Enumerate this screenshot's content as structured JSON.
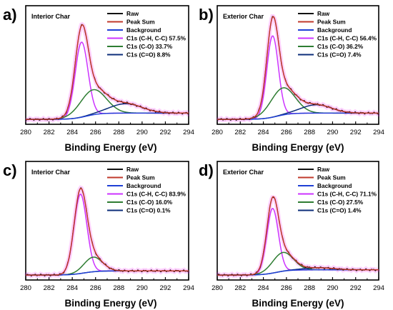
{
  "figure": {
    "x_ticks": [
      "280",
      "282",
      "284",
      "286",
      "288",
      "290",
      "292",
      "294"
    ],
    "x_axis_label": "Binding Energy  (eV)"
  },
  "colors": {
    "raw": "#111111",
    "peak_sum": "#c0392b",
    "background": "#1f3fd6",
    "c1_chc": "#cc33ff",
    "c1_co": "#2e7d32",
    "c1_c_eq_o": "#0c2e7a",
    "raw_halo": "#ff00ff"
  },
  "chart_data": [
    {
      "panel": "a)",
      "type": "line",
      "title": "Interior Char",
      "xlabel": "Binding Energy  (eV)",
      "xlim": [
        280,
        294
      ],
      "ylabel": "",
      "legend": "top-right",
      "grid": false,
      "legend_entries": [
        "Raw",
        "Peak Sum",
        "Background",
        "C1s (C-H, C-C) 57.5%",
        "C1s (C-O) 33.7%",
        "C1s (C=O) 8.8%"
      ],
      "background_line": {
        "start": 0.02,
        "end": 0.08,
        "step_center": 285.2
      },
      "components": [
        {
          "label": "C1s (C-H, C-C) 57.5%",
          "center": 284.8,
          "width": 0.55,
          "height": 0.72
        },
        {
          "label": "C1s (C-O) 33.7%",
          "center": 285.8,
          "width": 1.1,
          "height": 0.24
        },
        {
          "label": "C1s (C=O) 8.8%",
          "center": 288.6,
          "width": 1.4,
          "height": 0.09
        }
      ]
    },
    {
      "panel": "b)",
      "type": "line",
      "title": "Exterior Char",
      "xlabel": "Binding Energy  (eV)",
      "xlim": [
        280,
        294
      ],
      "ylabel": "",
      "legend": "top-right",
      "grid": false,
      "legend_entries": [
        "Raw",
        "Peak Sum",
        "Background",
        "C1s (C-H, C-C) 56.4%",
        "C1s (C-O) 36.2%",
        "C1s (C=O) 7.4%"
      ],
      "background_line": {
        "start": 0.02,
        "end": 0.08,
        "step_center": 285.2
      },
      "components": [
        {
          "label": "C1s (C-H, C-C) 56.4%",
          "center": 284.8,
          "width": 0.5,
          "height": 0.78
        },
        {
          "label": "C1s (C-O) 36.2%",
          "center": 285.7,
          "width": 1.05,
          "height": 0.26
        },
        {
          "label": "C1s (C=O) 7.4%",
          "center": 288.6,
          "width": 1.3,
          "height": 0.08
        }
      ]
    },
    {
      "panel": "c)",
      "type": "line",
      "title": "Interior Char",
      "xlabel": "Binding Energy  (eV)",
      "xlim": [
        280,
        294
      ],
      "ylabel": "",
      "legend": "top-right",
      "grid": false,
      "legend_entries": [
        "Raw",
        "Peak Sum",
        "Background",
        "C1s (C-H, C-C) 83.9%",
        "C1s (C-O) 16.0%",
        "C1s (C=O) 0.1%"
      ],
      "background_line": {
        "start": 0.02,
        "end": 0.06,
        "step_center": 285.0
      },
      "components": [
        {
          "label": "C1s (C-H, C-C) 83.9%",
          "center": 284.7,
          "width": 0.55,
          "height": 0.76
        },
        {
          "label": "C1s (C-O) 16.0%",
          "center": 285.8,
          "width": 0.8,
          "height": 0.14
        },
        {
          "label": "C1s (C=O) 0.1%",
          "center": 288.5,
          "width": 1.0,
          "height": 0.0
        }
      ]
    },
    {
      "panel": "d)",
      "type": "line",
      "title": "Exterior Char",
      "xlabel": "Binding Energy  (eV)",
      "xlim": [
        280,
        294
      ],
      "ylabel": "",
      "legend": "top-right",
      "grid": false,
      "legend_entries": [
        "Raw",
        "Peak Sum",
        "Background",
        "C1s (C-H, C-C) 71.1%",
        "C1s (C-O) 27.5%",
        "C1s (C=O) 1.4%"
      ],
      "background_line": {
        "start": 0.02,
        "end": 0.07,
        "step_center": 285.1
      },
      "components": [
        {
          "label": "C1s (C-H, C-C) 71.1%",
          "center": 284.8,
          "width": 0.5,
          "height": 0.62
        },
        {
          "label": "C1s (C-O) 27.5%",
          "center": 285.7,
          "width": 0.9,
          "height": 0.18
        },
        {
          "label": "C1s (C=O) 1.4%",
          "center": 288.8,
          "width": 1.3,
          "height": 0.02
        }
      ]
    }
  ]
}
